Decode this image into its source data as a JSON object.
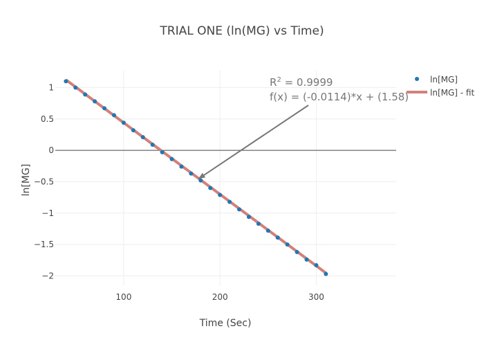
{
  "chart_data": {
    "type": "scatter",
    "title": "TRIAL ONE (ln(MG) vs Time)",
    "xlabel": "Time (Sec)",
    "ylabel": "ln[MG]",
    "xlim": [
      29,
      383
    ],
    "ylim": [
      -2.15,
      1.27
    ],
    "x_ticks": [
      100,
      200,
      300
    ],
    "x_tick_labels": [
      "100",
      "200",
      "300"
    ],
    "y_ticks": [
      1,
      0.5,
      0,
      -0.5,
      -1,
      -1.5,
      -2
    ],
    "y_tick_labels": [
      "1",
      "0.5",
      "0",
      "−0.5",
      "−1",
      "−1.5",
      "−2"
    ],
    "grid": true,
    "legend_position": "top-right",
    "series": [
      {
        "name": "ln[MG]",
        "mode": "markers",
        "color": "#1f77b4",
        "x": [
          40,
          50,
          60,
          70,
          80,
          90,
          100,
          110,
          120,
          130,
          140,
          150,
          160,
          170,
          180,
          190,
          200,
          210,
          220,
          230,
          240,
          250,
          260,
          270,
          280,
          290,
          300,
          310
        ],
        "y": [
          1.1,
          1.0,
          0.89,
          0.78,
          0.67,
          0.56,
          0.44,
          0.32,
          0.21,
          0.09,
          -0.03,
          -0.14,
          -0.26,
          -0.37,
          -0.48,
          -0.6,
          -0.71,
          -0.82,
          -0.94,
          -1.06,
          -1.17,
          -1.28,
          -1.39,
          -1.5,
          -1.62,
          -1.74,
          -1.83,
          -1.97
        ]
      },
      {
        "name": "ln[MG] - fit",
        "mode": "lines",
        "color": "#d3807a",
        "x": [
          40,
          310
        ],
        "y": [
          1.124,
          -1.954
        ]
      }
    ],
    "annotation": {
      "r2_prefix": "R",
      "r2_sup": "2",
      "r2_value": " = 0.9999",
      "equation": "f(x) = (-0.0114)*x + (1.58)",
      "arrow_to": {
        "x": 178,
        "y": -0.45
      },
      "color": "#777777"
    },
    "colors": {
      "text": "#444444",
      "grid": "#eeeeee",
      "zeroline": "#444444"
    }
  }
}
